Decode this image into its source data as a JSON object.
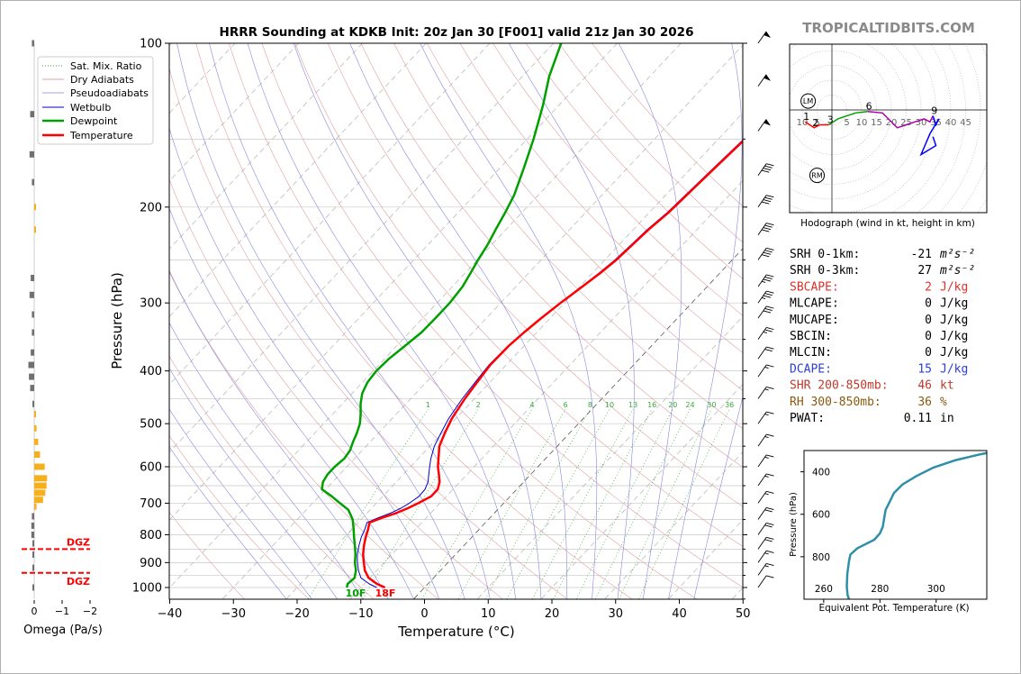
{
  "figure": {
    "title": "HRRR Sounding at KDKB Init: 20z Jan 30 [F001] valid 21z Jan 30 2026",
    "watermark": "TROPICALTIDBITS.COM"
  },
  "chart_data": [
    {
      "id": "skewt",
      "type": "line",
      "xlabel": "Temperature (°C)",
      "ylabel": "Pressure (hPa)",
      "xlim": [
        -40,
        50
      ],
      "ylim": [
        1050,
        100
      ],
      "y_scale": "log",
      "xticks": [
        -40,
        -30,
        -20,
        -10,
        0,
        10,
        20,
        30,
        40,
        50
      ],
      "yticks": [
        100,
        200,
        300,
        400,
        500,
        600,
        700,
        800,
        900,
        1000
      ],
      "grid": true,
      "legend_position": "top-left",
      "legend": [
        "Sat. Mix. Ratio",
        "Dry Adiabats",
        "Pseudoadiabats",
        "Wetbulb",
        "Dewpoint",
        "Temperature"
      ],
      "mixing_ratio_labels": [
        "1",
        "2",
        "4",
        "6",
        "8",
        "10",
        "13",
        "16",
        "20",
        "24",
        "30",
        "36"
      ],
      "surface_labels": {
        "dewpoint": "10F",
        "temperature": "18F"
      },
      "series": [
        {
          "name": "Temperature",
          "color": "#ff0000",
          "points": [
            [
              1000,
              -6.2
            ],
            [
              985,
              -8
            ],
            [
              960,
              -10.2
            ],
            [
              930,
              -11.9
            ],
            [
              900,
              -13.2
            ],
            [
              870,
              -14.5
            ],
            [
              840,
              -15.6
            ],
            [
              810,
              -16.6
            ],
            [
              780,
              -17.5
            ],
            [
              760,
              -18.2
            ],
            [
              745,
              -17
            ],
            [
              730,
              -15.4
            ],
            [
              715,
              -14.3
            ],
            [
              700,
              -13.4
            ],
            [
              680,
              -12.4
            ],
            [
              660,
              -12.4
            ],
            [
              640,
              -13.2
            ],
            [
              620,
              -14.4
            ],
            [
              600,
              -15.7
            ],
            [
              580,
              -16.8
            ],
            [
              550,
              -18.5
            ],
            [
              520,
              -19.6
            ],
            [
              490,
              -20.6
            ],
            [
              450,
              -21.5
            ],
            [
              420,
              -22
            ],
            [
              390,
              -22.5
            ],
            [
              360,
              -22.4
            ],
            [
              340,
              -22
            ],
            [
              320,
              -21.4
            ],
            [
              300,
              -20.6
            ],
            [
              280,
              -19.6
            ],
            [
              265,
              -18.8
            ],
            [
              250,
              -18.2
            ],
            [
              235,
              -17.9
            ],
            [
              220,
              -17.6
            ],
            [
              205,
              -17
            ],
            [
              190,
              -16.7
            ],
            [
              170,
              -16.3
            ],
            [
              150,
              -15.8
            ],
            [
              130,
              -15.3
            ],
            [
              115,
              -15.3
            ],
            [
              100,
              -15.7
            ]
          ]
        },
        {
          "name": "Wetbulb",
          "color": "#0000cc",
          "points": [
            [
              1000,
              -7.5
            ],
            [
              985,
              -9.2
            ],
            [
              960,
              -11.4
            ],
            [
              930,
              -12.9
            ],
            [
              900,
              -14.2
            ],
            [
              870,
              -15.4
            ],
            [
              840,
              -16.4
            ],
            [
              810,
              -17.3
            ],
            [
              780,
              -18
            ],
            [
              760,
              -18.6
            ],
            [
              745,
              -17.6
            ],
            [
              730,
              -16.3
            ],
            [
              715,
              -15.4
            ],
            [
              700,
              -14.8
            ],
            [
              680,
              -14.3
            ],
            [
              660,
              -14.4
            ],
            [
              640,
              -15
            ],
            [
              620,
              -16
            ],
            [
              600,
              -17
            ],
            [
              580,
              -18
            ],
            [
              550,
              -19.3
            ],
            [
              520,
              -20.2
            ],
            [
              490,
              -21.1
            ],
            [
              450,
              -21.9
            ],
            [
              420,
              -22.3
            ],
            [
              390,
              -22.7
            ],
            [
              360,
              -22.5
            ],
            [
              340,
              -22.1
            ],
            [
              320,
              -21.5
            ],
            [
              300,
              -20.7
            ],
            [
              280,
              -19.7
            ],
            [
              265,
              -19
            ],
            [
              250,
              -18.4
            ],
            [
              235,
              -18.1
            ],
            [
              220,
              -17.8
            ],
            [
              205,
              -17.2
            ],
            [
              190,
              -16.9
            ],
            [
              170,
              -16.5
            ],
            [
              150,
              -16
            ],
            [
              130,
              -15.5
            ],
            [
              115,
              -15.5
            ],
            [
              100,
              -15.9
            ]
          ]
        },
        {
          "name": "Dewpoint",
          "color": "#00a000",
          "points": [
            [
              1000,
              -12.2
            ],
            [
              985,
              -12.6
            ],
            [
              960,
              -12.4
            ],
            [
              930,
              -13.3
            ],
            [
              900,
              -14.6
            ],
            [
              870,
              -15.7
            ],
            [
              840,
              -17
            ],
            [
              810,
              -18.4
            ],
            [
              780,
              -19.8
            ],
            [
              750,
              -21.3
            ],
            [
              720,
              -23.4
            ],
            [
              700,
              -25.7
            ],
            [
              680,
              -28
            ],
            [
              660,
              -30.6
            ],
            [
              640,
              -31.5
            ],
            [
              620,
              -31.9
            ],
            [
              600,
              -31.9
            ],
            [
              580,
              -31.6
            ],
            [
              560,
              -31.9
            ],
            [
              540,
              -32.7
            ],
            [
              520,
              -33.4
            ],
            [
              500,
              -34.3
            ],
            [
              480,
              -35.6
            ],
            [
              460,
              -37.1
            ],
            [
              440,
              -38.4
            ],
            [
              420,
              -39.2
            ],
            [
              400,
              -39.5
            ],
            [
              380,
              -39.3
            ],
            [
              360,
              -38.7
            ],
            [
              340,
              -38.1
            ],
            [
              320,
              -38
            ],
            [
              300,
              -38
            ],
            [
              280,
              -38.4
            ],
            [
              265,
              -39.1
            ],
            [
              250,
              -39.9
            ],
            [
              235,
              -40.6
            ],
            [
              220,
              -41.6
            ],
            [
              205,
              -42.6
            ],
            [
              190,
              -43.8
            ],
            [
              170,
              -46.2
            ],
            [
              150,
              -49
            ],
            [
              130,
              -52.5
            ],
            [
              115,
              -55.8
            ],
            [
              100,
              -58.8
            ]
          ]
        }
      ]
    },
    {
      "id": "omega",
      "type": "bar",
      "xlabel": "Omega (Pa/s)",
      "xticks": [
        "0",
        "−1",
        "−2"
      ],
      "dgz_label": "DGZ",
      "dgz_bounds_hPa": [
        850,
        940
      ],
      "bars": [
        [
          100,
          0.2
        ],
        [
          135,
          0.35
        ],
        [
          160,
          0.4
        ],
        [
          180,
          0.2
        ],
        [
          200,
          -0.05
        ],
        [
          220,
          -0.15
        ],
        [
          270,
          0.3
        ],
        [
          290,
          0.4
        ],
        [
          315,
          0.2
        ],
        [
          340,
          0.2
        ],
        [
          370,
          0.3
        ],
        [
          390,
          0.5
        ],
        [
          410,
          0.45
        ],
        [
          430,
          0.35
        ],
        [
          460,
          0.1
        ],
        [
          480,
          -0.05
        ],
        [
          510,
          -0.2
        ],
        [
          540,
          -0.35
        ],
        [
          570,
          -0.5
        ],
        [
          600,
          -0.9
        ],
        [
          630,
          -1.1
        ],
        [
          650,
          -1.05
        ],
        [
          670,
          -0.95
        ],
        [
          690,
          -0.75
        ],
        [
          710,
          -0.2
        ],
        [
          740,
          0.2
        ],
        [
          770,
          0.25
        ],
        [
          800,
          0.25
        ],
        [
          830,
          0.15
        ],
        [
          870,
          0.05
        ],
        [
          920,
          0.02
        ],
        [
          1000,
          0.0
        ]
      ]
    },
    {
      "id": "hodograph",
      "type": "scatter",
      "xlabel": "Hodograph (wind in kt, height in km)",
      "ring_labels": [
        "10",
        "5",
        "5",
        "10",
        "15",
        "20",
        "25",
        "30",
        "35",
        "40",
        "45"
      ],
      "point_labels": [
        "1",
        "2",
        "3",
        "6",
        "9"
      ],
      "markers": [
        "LM",
        "RM"
      ],
      "trace": [
        [
          -9,
          -4
        ],
        [
          -6,
          -6
        ],
        [
          -4,
          -5
        ],
        [
          -1,
          -5
        ],
        [
          2,
          -3
        ],
        [
          5,
          -2
        ],
        [
          8,
          -1
        ],
        [
          12,
          -0.5
        ],
        [
          17,
          -1
        ],
        [
          19,
          -3
        ],
        [
          22,
          -6
        ],
        [
          25,
          -5
        ],
        [
          28,
          -4
        ],
        [
          31,
          -3
        ],
        [
          33,
          -4
        ],
        [
          34,
          -2
        ],
        [
          35,
          -5
        ],
        [
          36,
          -3
        ],
        [
          33,
          -8
        ],
        [
          30,
          -15
        ],
        [
          35,
          -12
        ],
        [
          34,
          -9
        ]
      ],
      "trace_colors": [
        "#ff0000",
        "#00a000",
        "#aa00aa",
        "#0000ff"
      ],
      "segment_breaks": [
        0,
        3,
        7,
        15,
        22
      ]
    },
    {
      "id": "theta_e",
      "type": "line",
      "xlabel": "Equivalent Pot. Temperature (K)",
      "ylabel": "Pressure (hPa)",
      "xticks": [
        260,
        280,
        300
      ],
      "yticks": [
        400,
        600,
        800
      ],
      "xlim": [
        253,
        318
      ],
      "ylim": [
        1000,
        300
      ],
      "color": "#2f8fa8",
      "points": [
        [
          1000,
          269
        ],
        [
          980,
          268.5
        ],
        [
          940,
          268.2
        ],
        [
          880,
          268.4
        ],
        [
          820,
          269
        ],
        [
          790,
          269.5
        ],
        [
          760,
          272
        ],
        [
          720,
          278
        ],
        [
          690,
          280
        ],
        [
          660,
          281
        ],
        [
          620,
          281.5
        ],
        [
          580,
          282
        ],
        [
          540,
          283.5
        ],
        [
          500,
          285
        ],
        [
          460,
          288
        ],
        [
          420,
          293
        ],
        [
          380,
          299
        ],
        [
          345,
          307
        ],
        [
          320,
          315
        ],
        [
          300,
          322
        ]
      ]
    }
  ],
  "indices": [
    {
      "label": "SRH 0-1km:",
      "value": "-21",
      "unit": "m²s⁻²",
      "color": "#000000"
    },
    {
      "label": "SRH 0-3km:",
      "value": "27",
      "unit": "m²s⁻²",
      "color": "#000000"
    },
    {
      "label": "SBCAPE:",
      "value": "2",
      "unit": "J/kg",
      "color": "#e0302a"
    },
    {
      "label": "MLCAPE:",
      "value": "0",
      "unit": "J/kg",
      "color": "#000000"
    },
    {
      "label": "MUCAPE:",
      "value": "0",
      "unit": "J/kg",
      "color": "#000000"
    },
    {
      "label": "SBCIN:",
      "value": "0",
      "unit": "J/kg",
      "color": "#000000"
    },
    {
      "label": "MLCIN:",
      "value": "0",
      "unit": "J/kg",
      "color": "#000000"
    },
    {
      "label": "DCAPE:",
      "value": "15",
      "unit": "J/kg",
      "color": "#2a3fd4"
    },
    {
      "label": "SHR 200-850mb:",
      "value": "46",
      "unit": "kt",
      "color": "#c0392b"
    },
    {
      "label": "RH 300-850mb:",
      "value": "36",
      "unit": "%",
      "color": "#8a5a10"
    },
    {
      "label": "PWAT:",
      "value": "0.11",
      "unit": "in",
      "color": "#000000"
    }
  ],
  "wind_barbs": [
    {
      "p": 100,
      "spd": 50
    },
    {
      "p": 120,
      "spd": 50
    },
    {
      "p": 145,
      "spd": 50
    },
    {
      "p": 175,
      "spd": 40
    },
    {
      "p": 200,
      "spd": 40
    },
    {
      "p": 225,
      "spd": 40
    },
    {
      "p": 250,
      "spd": 40
    },
    {
      "p": 280,
      "spd": 35
    },
    {
      "p": 300,
      "spd": 35
    },
    {
      "p": 320,
      "spd": 30
    },
    {
      "p": 350,
      "spd": 25
    },
    {
      "p": 380,
      "spd": 20
    },
    {
      "p": 410,
      "spd": 15
    },
    {
      "p": 450,
      "spd": 15
    },
    {
      "p": 500,
      "spd": 15
    },
    {
      "p": 550,
      "spd": 15
    },
    {
      "p": 600,
      "spd": 15
    },
    {
      "p": 650,
      "spd": 15
    },
    {
      "p": 700,
      "spd": 15
    },
    {
      "p": 750,
      "spd": 20
    },
    {
      "p": 800,
      "spd": 20
    },
    {
      "p": 850,
      "spd": 20
    },
    {
      "p": 900,
      "spd": 15
    },
    {
      "p": 950,
      "spd": 15
    },
    {
      "p": 1000,
      "spd": 10
    }
  ]
}
